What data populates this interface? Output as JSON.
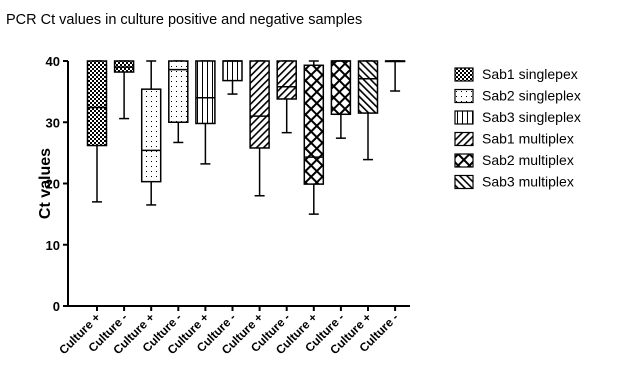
{
  "chart_data": {
    "type": "box",
    "title": "PCR Ct values in culture positive and negative samples",
    "xlabel": "",
    "ylabel": "Ct values",
    "ylim": [
      0,
      40
    ],
    "yticks": [
      0,
      10,
      20,
      30,
      40
    ],
    "grid": false,
    "legend_placement": "right",
    "categories": [
      "Culture +",
      "Culture -",
      "Culture +",
      "Culture -",
      "Culture +",
      "Culture -",
      "Culture +",
      "Culture -",
      "Culture +",
      "Culture -",
      "Culture +",
      "Culture -"
    ],
    "series": [
      {
        "name": "Sab1 singlepex",
        "pattern": "dots-dense",
        "boxes": [
          {
            "category": "Culture +",
            "min": 17,
            "q1": 26.2,
            "median": 32.4,
            "q3": 40,
            "max": 40
          },
          {
            "category": "Culture -",
            "min": 30.6,
            "q1": 38.2,
            "median": 39,
            "q3": 40,
            "max": 40
          }
        ]
      },
      {
        "name": "Sab2 singleplex",
        "pattern": "dots-sparse",
        "boxes": [
          {
            "category": "Culture +",
            "min": 16.5,
            "q1": 20.3,
            "median": 25.4,
            "q3": 35.4,
            "max": 40
          },
          {
            "category": "Culture -",
            "min": 26.7,
            "q1": 30,
            "median": 38.6,
            "q3": 40,
            "max": 40
          }
        ]
      },
      {
        "name": "Sab3 singleplex",
        "pattern": "vertical-lines",
        "boxes": [
          {
            "category": "Culture +",
            "min": 23.2,
            "q1": 29.8,
            "median": 34,
            "q3": 40,
            "max": 40
          },
          {
            "category": "Culture -",
            "min": 34.6,
            "q1": 36.8,
            "median": 40,
            "q3": 40,
            "max": 40
          }
        ]
      },
      {
        "name": "Sab1 multiplex",
        "pattern": "diagonal-up",
        "boxes": [
          {
            "category": "Culture +",
            "min": 18,
            "q1": 25.8,
            "median": 31,
            "q3": 40,
            "max": 40
          },
          {
            "category": "Culture -",
            "min": 28.3,
            "q1": 33.8,
            "median": 35.8,
            "q3": 40,
            "max": 40
          }
        ]
      },
      {
        "name": "Sab2 multiplex",
        "pattern": "crosshatch",
        "boxes": [
          {
            "category": "Culture +",
            "min": 15,
            "q1": 19.9,
            "median": 24.3,
            "q3": 39.3,
            "max": 40
          },
          {
            "category": "Culture -",
            "min": 27.4,
            "q1": 31.3,
            "median": 40,
            "q3": 40,
            "max": 40
          }
        ]
      },
      {
        "name": "Sab3 multiplex",
        "pattern": "diagonal-down",
        "boxes": [
          {
            "category": "Culture +",
            "min": 23.9,
            "q1": 31.5,
            "median": 37.1,
            "q3": 40,
            "max": 40
          },
          {
            "category": "Culture -",
            "min": 35.1,
            "q1": 40,
            "median": 40,
            "q3": 40,
            "max": 40
          }
        ]
      }
    ]
  }
}
